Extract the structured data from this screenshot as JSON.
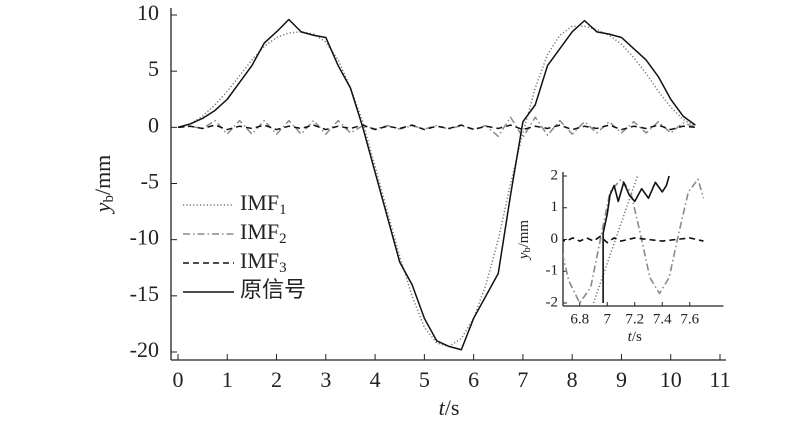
{
  "chart_data": [
    {
      "type": "line",
      "xlabel": {
        "main": "t",
        "rest": "/s"
      },
      "ylabel": {
        "main": "y",
        "sub": "b",
        "rest": "/mm"
      },
      "xlim": [
        0,
        11
      ],
      "ylim": [
        -20,
        10
      ],
      "xticks": [
        0,
        1,
        2,
        3,
        4,
        5,
        6,
        7,
        8,
        9,
        10,
        11
      ],
      "yticks": [
        10,
        5,
        0,
        -5,
        -10,
        -15,
        -20
      ],
      "legend": "left",
      "x": [
        0,
        0.25,
        0.5,
        0.75,
        1,
        1.25,
        1.5,
        1.75,
        2,
        2.25,
        2.5,
        2.75,
        3,
        3.25,
        3.5,
        3.75,
        4,
        4.25,
        4.5,
        4.75,
        5,
        5.25,
        5.5,
        5.75,
        6,
        6.25,
        6.5,
        6.75,
        7,
        7.25,
        7.5,
        7.75,
        8,
        8.25,
        8.5,
        8.75,
        9,
        9.25,
        9.5,
        9.75,
        10,
        10.25,
        10.5
      ],
      "series": [
        {
          "name": "IMF1",
          "color": "#777777",
          "linestyle": "dotted",
          "values": [
            0,
            0.3,
            1,
            2,
            3.2,
            4.6,
            6,
            7.2,
            8,
            8.4,
            8.5,
            8.3,
            7.6,
            6,
            3.5,
            0.5,
            -3.5,
            -7.5,
            -11.5,
            -15,
            -17.8,
            -19.2,
            -19.5,
            -18.8,
            -17,
            -14,
            -10,
            -5,
            -0.5,
            3.5,
            6.5,
            8.2,
            9,
            9,
            8.7,
            8.2,
            7.4,
            6.2,
            4.8,
            3.2,
            1.8,
            0.7,
            0.1
          ]
        },
        {
          "name": "IMF2",
          "color": "#8a8a8a",
          "linestyle": "dashdot",
          "values": [
            0,
            0.1,
            -0.1,
            0.6,
            -0.6,
            0.6,
            -0.6,
            0.6,
            -0.6,
            0.6,
            -0.6,
            0.6,
            -0.6,
            0.6,
            -0.5,
            0.15,
            -0.15,
            0.15,
            -0.15,
            0.15,
            -0.15,
            0.15,
            -0.15,
            0.15,
            -0.15,
            0.15,
            -0.8,
            0.9,
            -0.9,
            0.9,
            -0.7,
            0.6,
            -0.6,
            0.5,
            -0.5,
            0.5,
            -0.5,
            0.5,
            -0.5,
            0.5,
            -0.5,
            0.4,
            0
          ]
        },
        {
          "name": "IMF3",
          "color": "#111111",
          "linestyle": "dashed",
          "values": [
            0,
            0.1,
            -0.1,
            0.2,
            -0.2,
            0.1,
            -0.1,
            0.2,
            -0.2,
            0.1,
            -0.1,
            0.2,
            -0.2,
            0.1,
            -0.1,
            0.2,
            -0.2,
            0.1,
            -0.1,
            0.2,
            -0.2,
            0.1,
            -0.1,
            0.2,
            -0.2,
            0.1,
            -0.1,
            0.2,
            -0.2,
            0.1,
            -0.1,
            0.2,
            -0.2,
            0.1,
            -0.1,
            0.2,
            -0.2,
            0.1,
            -0.1,
            0.2,
            -0.2,
            0.1,
            0
          ]
        },
        {
          "name": "原信号",
          "color": "#111111",
          "linestyle": "solid",
          "values": [
            0,
            0.3,
            0.8,
            1.5,
            2.5,
            4,
            5.5,
            7.5,
            8.5,
            9.6,
            8.5,
            8.2,
            8,
            5.5,
            3.5,
            0,
            -4,
            -8,
            -12,
            -14,
            -17,
            -19,
            -19.5,
            -19.8,
            -17,
            -15,
            -13,
            -6,
            0.5,
            2,
            5.5,
            7,
            8.5,
            9.5,
            8.5,
            8.3,
            8,
            7,
            6,
            4.5,
            2.5,
            1,
            0.2
          ]
        }
      ]
    },
    {
      "type": "line",
      "xlabel": {
        "main": "t",
        "rest": "/s"
      },
      "ylabel": {
        "main": "y",
        "sub": "b",
        "rest": "/mm"
      },
      "xlim": [
        6.7,
        7.7
      ],
      "ylim": [
        -2,
        2
      ],
      "xticks": [
        6.8,
        7.0,
        7.2,
        7.4,
        7.6
      ],
      "yticks": [
        2,
        1,
        0,
        -1,
        -2
      ],
      "series": [
        {
          "color": "#777777",
          "linestyle": "dotted",
          "x": [
            6.9,
            7.22
          ],
          "values": [
            -2,
            2
          ]
        },
        {
          "color": "#8a8a8a",
          "linestyle": "dashdot",
          "x": [
            6.65,
            6.72,
            6.8,
            6.88,
            6.95,
            7.02,
            7.1,
            7.17,
            7.24,
            7.31,
            7.38,
            7.45,
            7.52,
            7.59,
            7.66,
            7.7
          ],
          "values": [
            0,
            -1.3,
            -2,
            -1.5,
            0,
            1.5,
            1.9,
            1.5,
            0.2,
            -1.2,
            -1.7,
            -1.2,
            0.2,
            1.5,
            1.9,
            1.3
          ]
        },
        {
          "color": "#111111",
          "linestyle": "dashed",
          "x": [
            6.65,
            6.7,
            6.75,
            6.8,
            6.85,
            6.9,
            6.95,
            7,
            7.05,
            7.1,
            7.2,
            7.3,
            7.4,
            7.5,
            7.6,
            7.7
          ],
          "values": [
            0,
            -0.05,
            0.05,
            -0.05,
            0.05,
            -0.05,
            0.1,
            -0.1,
            0.05,
            -0.05,
            0.05,
            0,
            -0.05,
            0,
            0.05,
            -0.05
          ]
        },
        {
          "color": "#111111",
          "linestyle": "solid",
          "x": [
            6.97,
            6.97,
            7.0,
            7.02,
            7.05,
            7.08,
            7.12,
            7.16,
            7.2,
            7.25,
            7.3,
            7.35,
            7.4,
            7.43,
            7.45
          ],
          "values": [
            -2,
            0.2,
            0.8,
            1.4,
            1.7,
            1.2,
            1.8,
            1.4,
            1.2,
            1.6,
            1.3,
            1.8,
            1.5,
            1.7,
            2
          ]
        }
      ]
    }
  ]
}
